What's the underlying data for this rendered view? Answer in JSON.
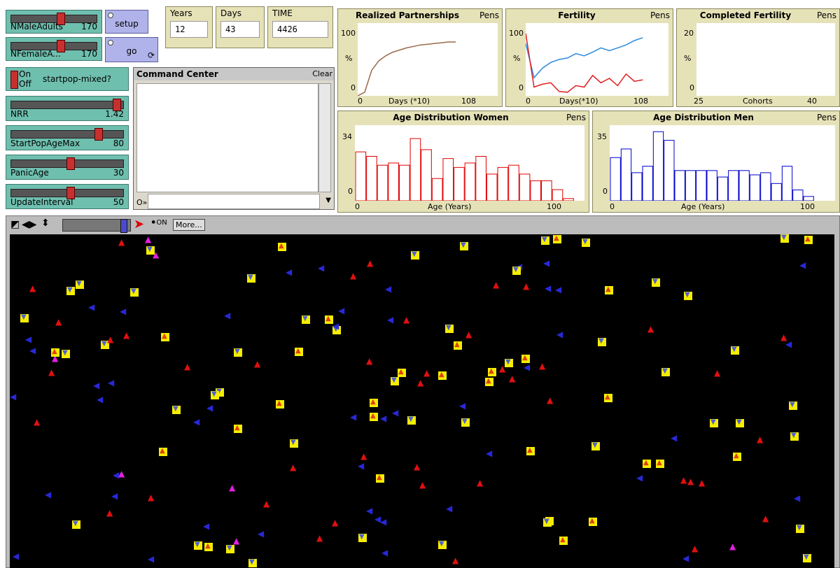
{
  "sliders": [
    {
      "label": "NMaleAdults",
      "value": "170",
      "level": 0.55
    },
    {
      "label": "NFemaleA...",
      "value": "170",
      "level": 0.55
    },
    {
      "label": "NRR",
      "value": "1.42",
      "level": 0.92
    },
    {
      "label": "StartPopAgeMax",
      "value": "80",
      "level": 0.78
    },
    {
      "label": "PanicAge",
      "value": "30",
      "level": 0.55
    },
    {
      "label": "UpdateInterval",
      "value": "50",
      "level": 0.55
    }
  ],
  "buttons": {
    "setup": "setup",
    "go": "go"
  },
  "switch": {
    "label": "startpop-mixed?",
    "on": "On",
    "off": "Off"
  },
  "monitors": [
    {
      "label": "Years",
      "value": "12"
    },
    {
      "label": "Days",
      "value": "43"
    },
    {
      "label": "TIME",
      "value": "4426"
    }
  ],
  "command_center": {
    "title": "Command Center",
    "clear": "Clear",
    "prompt": "O»"
  },
  "plots": [
    {
      "title": "Realized Partnerships",
      "pens": "Pens",
      "ymax": "100",
      "ymid": "%",
      "ymin": "0",
      "xmin": "0",
      "xlabel": "Days (*10)",
      "xmax": "108"
    },
    {
      "title": "Fertility",
      "pens": "Pens",
      "ymax": "100",
      "ymid": "%",
      "ymin": "0",
      "xmin": "0",
      "xlabel": "Days(*10)",
      "xmax": "108"
    },
    {
      "title": "Completed Fertility",
      "pens": "Pens",
      "ymax": "20",
      "ymid": "%",
      "ymin": "0",
      "xmin": "25",
      "xlabel": "Cohorts",
      "xmax": "40"
    },
    {
      "title": "Age Distribution Women",
      "pens": "Pens",
      "ymax": "34",
      "ymin": "0",
      "xmin": "0",
      "xlabel": "Age (Years)",
      "xmax": "100"
    },
    {
      "title": "Age Distribution Men",
      "pens": "Pens",
      "ymax": "35",
      "ymin": "0",
      "xmin": "0",
      "xlabel": "Age (Years)",
      "xmax": "100"
    }
  ],
  "series": {
    "women_hist": [
      22,
      20,
      16,
      17,
      16,
      28,
      23,
      10,
      19,
      15,
      17,
      20,
      12,
      15,
      16,
      12,
      9,
      9,
      5,
      1
    ],
    "men_hist": [
      20,
      24,
      13,
      16,
      32,
      28,
      14,
      14,
      14,
      14,
      11,
      14,
      14,
      12,
      13,
      8,
      16,
      5,
      2,
      0
    ],
    "partnership": [
      0,
      5,
      35,
      48,
      55,
      60,
      63,
      66,
      68,
      70,
      71,
      72,
      73,
      74,
      74
    ],
    "fert_blue": [
      72,
      25,
      38,
      46,
      50,
      52,
      58,
      55,
      60,
      66,
      62,
      66,
      70,
      76,
      80
    ],
    "fert_red": [
      86,
      12,
      16,
      18,
      6,
      5,
      14,
      12,
      28,
      18,
      24,
      14,
      30,
      20,
      22
    ]
  },
  "colors": {
    "women": "#e00000",
    "men": "#0000cc",
    "partner": "#9c6a4a",
    "fert_blue": "#2d8be0",
    "fert_red": "#e02020"
  },
  "toolbar": {
    "more": "More...",
    "speed_level": 0.72
  }
}
